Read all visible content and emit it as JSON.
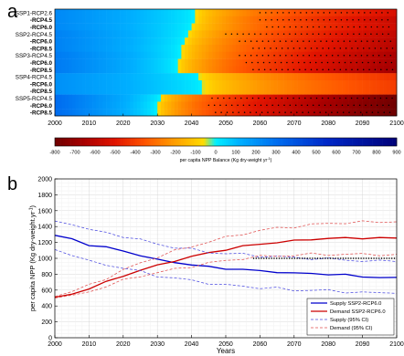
{
  "panels": [
    {
      "label": "a"
    },
    {
      "label": "b"
    }
  ],
  "chart_data": [
    {
      "type": "heatmap",
      "panel": "a",
      "xlim": [
        2000,
        2100
      ],
      "x_ticks": [
        2000,
        2010,
        2020,
        2030,
        2040,
        2050,
        2060,
        2070,
        2080,
        2090,
        2100
      ],
      "rows": [
        {
          "label": "SSP1-RCP2.6",
          "bold": false,
          "year_zero": 2040,
          "year_sig": 2060,
          "min": -520,
          "max": 220
        },
        {
          "label": "-RCP4.5",
          "bold": true,
          "year_zero": 2040,
          "year_sig": 2060,
          "min": -560,
          "max": 220
        },
        {
          "label": "-RCP6.0",
          "bold": true,
          "year_zero": 2039,
          "year_sig": 2062,
          "min": -550,
          "max": 220
        },
        {
          "label": "SSP2-RCP4.5",
          "bold": false,
          "year_zero": 2038,
          "year_sig": 2050,
          "min": -580,
          "max": 240
        },
        {
          "label": "-RCP6.0",
          "bold": true,
          "year_zero": 2037,
          "year_sig": 2054,
          "min": -600,
          "max": 240
        },
        {
          "label": "-RCP8.5",
          "bold": true,
          "year_zero": 2036,
          "year_sig": 2058,
          "min": -610,
          "max": 240
        },
        {
          "label": "SSP3-RCP4.5",
          "bold": false,
          "year_zero": 2036,
          "year_sig": 2054,
          "min": -640,
          "max": 260
        },
        {
          "label": "-RCP6.0",
          "bold": true,
          "year_zero": 2035,
          "year_sig": 2056,
          "min": -650,
          "max": 260
        },
        {
          "label": "-RCP8.5",
          "bold": true,
          "year_zero": 2035,
          "year_sig": 2058,
          "min": -660,
          "max": 260
        },
        {
          "label": "SSP4-RCP4.5",
          "bold": false,
          "year_zero": 2041,
          "year_sig": null,
          "min": -420,
          "max": 200
        },
        {
          "label": "-RCP6.0",
          "bold": true,
          "year_zero": 2042,
          "year_sig": null,
          "min": -400,
          "max": 200
        },
        {
          "label": "-RCP8.5",
          "bold": true,
          "year_zero": 2042,
          "year_sig": null,
          "min": -400,
          "max": 200
        },
        {
          "label": "SSP5-RCP4.5",
          "bold": false,
          "year_zero": 2030,
          "year_sig": 2046,
          "min": -780,
          "max": 300
        },
        {
          "label": "-RCP6.0",
          "bold": true,
          "year_zero": 2029,
          "year_sig": 2045,
          "min": -790,
          "max": 300
        },
        {
          "label": "-RCP8.5",
          "bold": true,
          "year_zero": 2029,
          "year_sig": 2047,
          "min": -800,
          "max": 300
        }
      ],
      "colorbar": {
        "ticks": [
          -800,
          -700,
          -600,
          -500,
          -400,
          -300,
          -200,
          -100,
          0,
          100,
          200,
          300,
          400,
          500,
          600,
          700,
          800,
          900
        ],
        "range": [
          -800,
          900
        ],
        "label_main": "per capita NPP Balance (Kg dry-weight yr",
        "label_sup": "-1",
        "label_end": ")"
      }
    },
    {
      "type": "line",
      "panel": "b",
      "xlim": [
        2000,
        2100
      ],
      "ylim": [
        0,
        2000
      ],
      "x_ticks": [
        2000,
        2010,
        2020,
        2030,
        2040,
        2050,
        2060,
        2070,
        2080,
        2090,
        2100
      ],
      "y_ticks": [
        0,
        200,
        400,
        600,
        800,
        1000,
        1200,
        1400,
        1600,
        1800,
        2000
      ],
      "xlabel": "Years",
      "ylabel_main": "per capita NPP (Kg dry-weight.yr",
      "ylabel_sup": "-1",
      "ylabel_end": ")",
      "x": [
        2000,
        2005,
        2010,
        2015,
        2020,
        2025,
        2030,
        2035,
        2040,
        2045,
        2050,
        2055,
        2060,
        2065,
        2070,
        2075,
        2080,
        2085,
        2090,
        2095,
        2100
      ],
      "series": [
        {
          "name": "Supply SSP2-RCP6.0",
          "style": "solid",
          "color": "#0000cc",
          "values": [
            1290,
            1240,
            1170,
            1140,
            1090,
            1040,
            980,
            950,
            920,
            890,
            870,
            860,
            840,
            830,
            810,
            810,
            800,
            790,
            770,
            760,
            760
          ]
        },
        {
          "name": "Demand SSP2-RCP6.0",
          "style": "solid",
          "color": "#cc0000",
          "values": [
            510,
            550,
            620,
            700,
            780,
            850,
            910,
            970,
            1020,
            1070,
            1110,
            1150,
            1180,
            1200,
            1220,
            1240,
            1250,
            1255,
            1255,
            1255,
            1255
          ]
        },
        {
          "name": "Supply (95% CI)",
          "style": "dashed",
          "color": "#4a4ae0",
          "values": [
            1470,
            1440,
            1360,
            1320,
            1280,
            1230,
            1180,
            1140,
            1110,
            1080,
            1060,
            1050,
            1030,
            1020,
            1010,
            1000,
            990,
            980,
            970,
            960,
            960
          ]
        },
        {
          "name": "",
          "style": "dashed",
          "color": "#4a4ae0",
          "values": [
            1110,
            1050,
            960,
            920,
            880,
            830,
            780,
            750,
            720,
            690,
            660,
            650,
            630,
            620,
            600,
            600,
            590,
            580,
            570,
            560,
            560
          ]
        },
        {
          "name": "Demand (95% CI)",
          "style": "dashed",
          "color": "#e05050",
          "values": [
            520,
            580,
            660,
            750,
            850,
            940,
            1020,
            1090,
            1150,
            1210,
            1260,
            1310,
            1350,
            1380,
            1400,
            1420,
            1440,
            1450,
            1455,
            1460,
            1460
          ]
        },
        {
          "name": "",
          "style": "dashed",
          "color": "#e05050",
          "values": [
            500,
            520,
            580,
            650,
            720,
            780,
            820,
            860,
            900,
            940,
            970,
            1000,
            1020,
            1030,
            1040,
            1050,
            1050,
            1050,
            1050,
            1050,
            1050
          ]
        },
        {
          "name": "",
          "style": "dotted",
          "color": "#000000",
          "x_range": [
            2058,
            2100
          ],
          "const": 1000
        }
      ],
      "legend_position": "bottom-right"
    }
  ]
}
